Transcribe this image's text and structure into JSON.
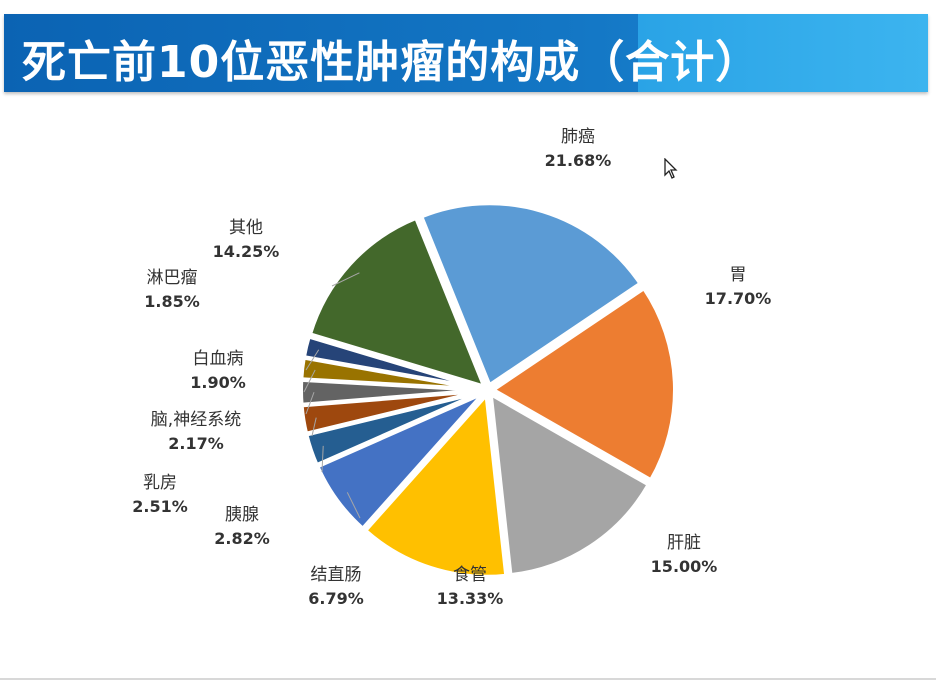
{
  "header": {
    "title": "死亡前10位恶性肿瘤的构成（",
    "title_highlight": "合计",
    "title_end": "）"
  },
  "chart_data": {
    "type": "pie",
    "title": "死亡前10位恶性肿瘤的构成（合计）",
    "start_angle_deg": -22,
    "slices": [
      {
        "name": "肺癌",
        "value": 21.68,
        "label": "21.68%",
        "color": "#5b9bd5",
        "name_color": "#2f5597"
      },
      {
        "name": "胃",
        "value": 17.7,
        "label": "17.70%",
        "color": "#ed7d31"
      },
      {
        "name": "肝脏",
        "value": 15.0,
        "label": "15.00%",
        "color": "#a5a5a5"
      },
      {
        "name": "食管",
        "value": 13.33,
        "label": "13.33%",
        "color": "#ffc000"
      },
      {
        "name": "结直肠",
        "value": 6.79,
        "label": "6.79%",
        "color": "#4472c4"
      },
      {
        "name": "胰腺",
        "value": 2.82,
        "label": "2.82%",
        "color": "#255e91"
      },
      {
        "name": "乳房",
        "value": 2.51,
        "label": "2.51%",
        "color": "#9e480e"
      },
      {
        "name": "脑,神经系统",
        "value": 2.17,
        "label": "2.17%",
        "color": "#636363"
      },
      {
        "name": "白血病",
        "value": 1.9,
        "label": "1.90%",
        "color": "#997300"
      },
      {
        "name": "淋巴瘤",
        "value": 1.85,
        "label": "1.85%",
        "color": "#264478"
      },
      {
        "name": "其他",
        "value": 14.25,
        "label": "14.25%",
        "color": "#43682b"
      }
    ]
  }
}
